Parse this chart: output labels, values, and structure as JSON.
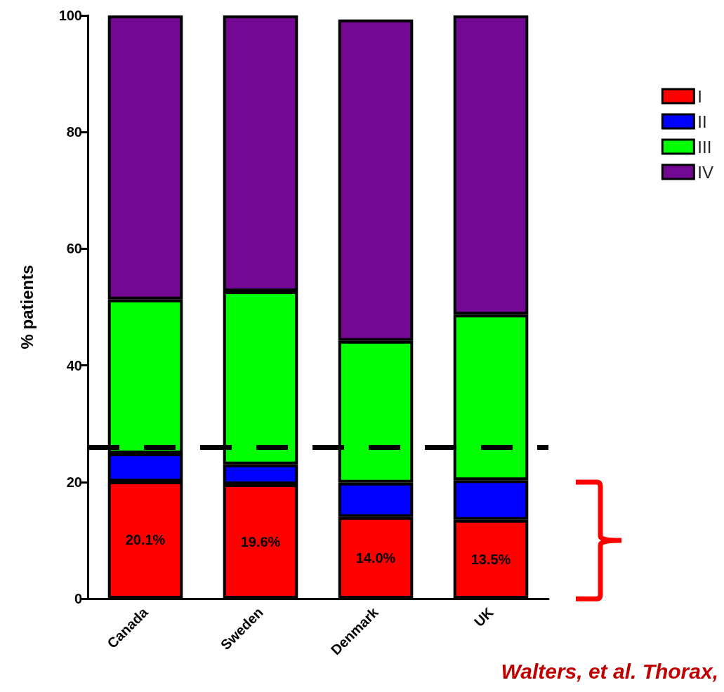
{
  "chart_data": {
    "type": "bar",
    "stacked": true,
    "ylabel": "% patients",
    "categories": [
      "Canada",
      "Sweden",
      "Denmark",
      "UK"
    ],
    "series": [
      {
        "name": "I",
        "color": "#ff0000",
        "values": [
          20.1,
          19.6,
          14.0,
          13.5
        ],
        "value_labels": [
          "20.1%",
          "19.6%",
          "14.0%",
          "13.5%"
        ]
      },
      {
        "name": "II",
        "color": "#0000ff",
        "values": [
          4.8,
          3.4,
          5.9,
          6.8
        ]
      },
      {
        "name": "III",
        "color": "#00ff00",
        "values": [
          26.4,
          29.7,
          24.3,
          28.4
        ]
      },
      {
        "name": "IV",
        "color": "#730893",
        "values": [
          48.7,
          47.3,
          55.1,
          51.3
        ]
      }
    ],
    "ylim": [
      0,
      100
    ],
    "yticks": [
      0,
      20,
      40,
      60,
      80,
      100
    ],
    "grid": false,
    "legend": "top right",
    "ref_lines": [
      {
        "axis": "y",
        "value": 26,
        "color": "#000000",
        "line_style": "dashed"
      }
    ],
    "annotations": [
      "Walters, et al. Thorax,"
    ]
  }
}
